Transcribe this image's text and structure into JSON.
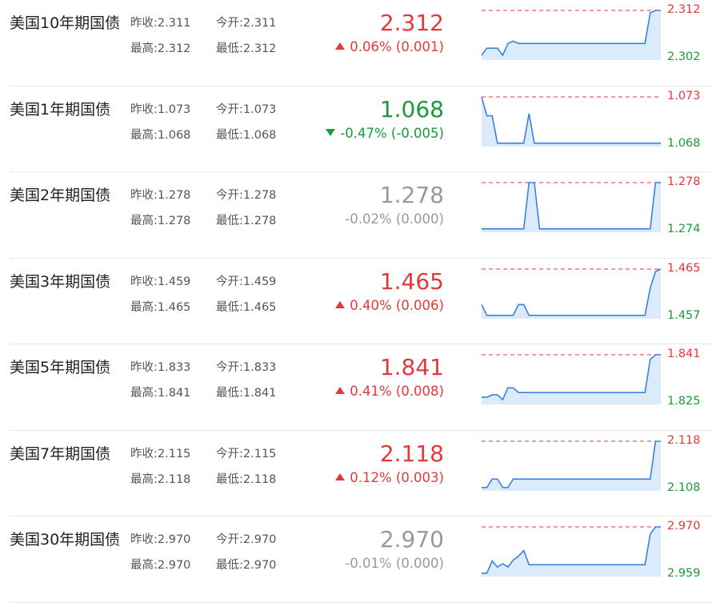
{
  "colors": {
    "up": "#e5383b",
    "down": "#1a9a3a",
    "flat": "#999999",
    "line": "#3b82e0",
    "area": "#dcebfb"
  },
  "labels": {
    "prev_close": "昨收:",
    "open": "今开:",
    "high": "最高:",
    "low": "最低:"
  },
  "bonds": [
    {
      "name": "美国10年期国债",
      "prev_close": "2.311",
      "open": "2.311",
      "high": "2.312",
      "low": "2.312",
      "price": "2.312",
      "change": "0.06% (0.001)",
      "direction": "up",
      "spark_hi": "2.312",
      "spark_lo": "2.302",
      "spark": [
        0.05,
        0.2,
        0.2,
        0.2,
        0.05,
        0.3,
        0.35,
        0.3,
        0.3,
        0.3,
        0.3,
        0.3,
        0.3,
        0.3,
        0.3,
        0.3,
        0.3,
        0.3,
        0.3,
        0.3,
        0.3,
        0.3,
        0.3,
        0.3,
        0.3,
        0.3,
        0.3,
        0.3,
        0.3,
        0.3,
        0.3,
        0.3,
        0.95,
        1.0,
        1.0
      ]
    },
    {
      "name": "美国1年期国债",
      "prev_close": "1.073",
      "open": "1.073",
      "high": "1.068",
      "low": "1.068",
      "price": "1.068",
      "change": "-0.47% (-0.005)",
      "direction": "down",
      "spark_hi": "1.073",
      "spark_lo": "1.068",
      "spark": [
        1.0,
        0.6,
        0.6,
        0.02,
        0.02,
        0.02,
        0.02,
        0.02,
        0.02,
        0.65,
        0.02,
        0.02,
        0.02,
        0.02,
        0.02,
        0.02,
        0.02,
        0.02,
        0.02,
        0.02,
        0.02,
        0.02,
        0.02,
        0.02,
        0.02,
        0.02,
        0.02,
        0.02,
        0.02,
        0.02,
        0.02,
        0.02,
        0.02,
        0.02,
        0.02
      ]
    },
    {
      "name": "美国2年期国债",
      "prev_close": "1.278",
      "open": "1.278",
      "high": "1.278",
      "low": "1.278",
      "price": "1.278",
      "change": "-0.02% (0.000)",
      "direction": "flat",
      "spark_hi": "1.278",
      "spark_lo": "1.274",
      "spark": [
        0.02,
        0.02,
        0.02,
        0.02,
        0.02,
        0.02,
        0.02,
        0.02,
        0.02,
        1.0,
        1.0,
        0.02,
        0.02,
        0.02,
        0.02,
        0.02,
        0.02,
        0.02,
        0.02,
        0.02,
        0.02,
        0.02,
        0.02,
        0.02,
        0.02,
        0.02,
        0.02,
        0.02,
        0.02,
        0.02,
        0.02,
        0.02,
        0.02,
        1.0,
        1.0
      ]
    },
    {
      "name": "美国3年期国债",
      "prev_close": "1.459",
      "open": "1.459",
      "high": "1.465",
      "low": "1.465",
      "price": "1.465",
      "change": "0.40% (0.006)",
      "direction": "up",
      "spark_hi": "1.465",
      "spark_lo": "1.457",
      "spark": [
        0.25,
        0.02,
        0.02,
        0.02,
        0.02,
        0.02,
        0.02,
        0.25,
        0.25,
        0.02,
        0.02,
        0.02,
        0.02,
        0.02,
        0.02,
        0.02,
        0.02,
        0.02,
        0.02,
        0.02,
        0.02,
        0.02,
        0.02,
        0.02,
        0.02,
        0.02,
        0.02,
        0.02,
        0.02,
        0.02,
        0.02,
        0.02,
        0.6,
        0.95,
        1.0
      ]
    },
    {
      "name": "美国5年期国债",
      "prev_close": "1.833",
      "open": "1.833",
      "high": "1.841",
      "low": "1.841",
      "price": "1.841",
      "change": "0.41% (0.008)",
      "direction": "up",
      "spark_hi": "1.841",
      "spark_lo": "1.825",
      "spark": [
        0.1,
        0.1,
        0.15,
        0.15,
        0.05,
        0.3,
        0.3,
        0.2,
        0.2,
        0.2,
        0.2,
        0.2,
        0.2,
        0.2,
        0.2,
        0.2,
        0.2,
        0.2,
        0.2,
        0.2,
        0.2,
        0.2,
        0.2,
        0.2,
        0.2,
        0.2,
        0.2,
        0.2,
        0.2,
        0.2,
        0.2,
        0.2,
        0.9,
        1.0,
        1.0
      ]
    },
    {
      "name": "美国7年期国债",
      "prev_close": "2.115",
      "open": "2.115",
      "high": "2.118",
      "low": "2.118",
      "price": "2.118",
      "change": "0.12% (0.003)",
      "direction": "up",
      "spark_hi": "2.118",
      "spark_lo": "2.108",
      "spark": [
        0.02,
        0.02,
        0.2,
        0.2,
        0.02,
        0.02,
        0.2,
        0.2,
        0.2,
        0.2,
        0.2,
        0.2,
        0.2,
        0.2,
        0.2,
        0.2,
        0.2,
        0.2,
        0.2,
        0.2,
        0.2,
        0.2,
        0.2,
        0.2,
        0.2,
        0.2,
        0.2,
        0.2,
        0.2,
        0.2,
        0.2,
        0.2,
        0.2,
        1.0,
        1.0
      ]
    },
    {
      "name": "美国30年期国债",
      "prev_close": "2.970",
      "open": "2.970",
      "high": "2.970",
      "low": "2.970",
      "price": "2.970",
      "change": "-0.01% (0.000)",
      "direction": "flat",
      "spark_hi": "2.970",
      "spark_lo": "2.959",
      "spark": [
        0.02,
        0.02,
        0.28,
        0.15,
        0.22,
        0.15,
        0.3,
        0.38,
        0.5,
        0.2,
        0.2,
        0.2,
        0.2,
        0.2,
        0.2,
        0.2,
        0.2,
        0.2,
        0.2,
        0.2,
        0.2,
        0.2,
        0.2,
        0.2,
        0.2,
        0.2,
        0.2,
        0.2,
        0.2,
        0.2,
        0.2,
        0.2,
        0.85,
        1.0,
        1.0
      ]
    }
  ]
}
